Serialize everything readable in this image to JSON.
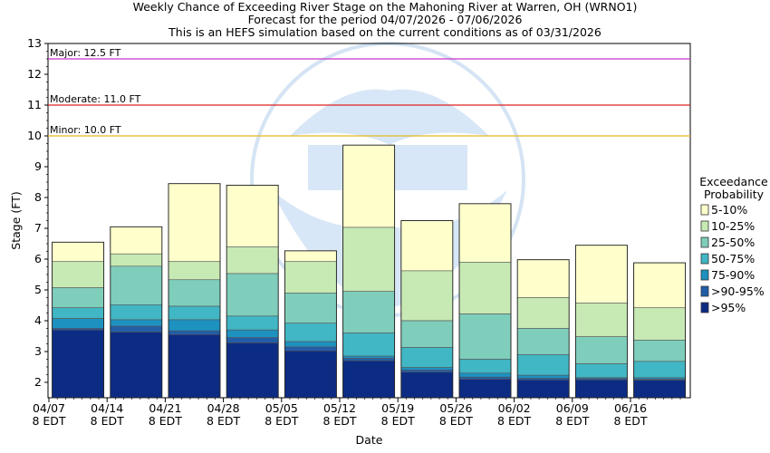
{
  "chart_data": {
    "type": "bar",
    "title_lines": [
      "Weekly Chance of Exceeding River Stage on the Mahoning River at Warren, OH (WRNO1)",
      "Forecast for the period 04/07/2026 - 07/06/2026",
      "This is an HEFS simulation based on the current conditions as of 03/31/2026"
    ],
    "xlabel": "Date",
    "ylabel": "Stage (FT)",
    "ylim": [
      1.5,
      13
    ],
    "yticks": [
      "2",
      "3",
      "4",
      "5",
      "6",
      "7",
      "8",
      "9",
      "10",
      "11",
      "12",
      "13"
    ],
    "x_tick_labels": [
      {
        "date": "04/07",
        "time": "8 EDT"
      },
      {
        "date": "04/14",
        "time": "8 EDT"
      },
      {
        "date": "04/21",
        "time": "8 EDT"
      },
      {
        "date": "04/28",
        "time": "8 EDT"
      },
      {
        "date": "05/05",
        "time": "8 EDT"
      },
      {
        "date": "05/12",
        "time": "8 EDT"
      },
      {
        "date": "05/19",
        "time": "8 EDT"
      },
      {
        "date": "05/26",
        "time": "8 EDT"
      },
      {
        "date": "06/02",
        "time": "8 EDT"
      },
      {
        "date": "06/09",
        "time": "8 EDT"
      },
      {
        "date": "06/16",
        "time": "8 EDT"
      }
    ],
    "thresholds": [
      {
        "label": "Major: 12.5 FT",
        "value": 12.5,
        "color": "#cc33cc"
      },
      {
        "label": "Moderate: 11.0 FT",
        "value": 11.0,
        "color": "#dd2222"
      },
      {
        "label": "Minor: 10.0 FT",
        "value": 10.0,
        "color": "#e8b820"
      }
    ],
    "legend_title": [
      "Exceedance",
      "Probability"
    ],
    "legend_position": "right",
    "bands": [
      {
        "label": "5-10%",
        "color": "#ffffcc"
      },
      {
        "label": "10-25%",
        "color": "#c7e9b4"
      },
      {
        "label": "25-50%",
        "color": "#7fcdbb"
      },
      {
        "label": "50-75%",
        "color": "#41b6c4"
      },
      {
        "label": "75-90%",
        "color": "#1d91c0"
      },
      {
        "label": ">90-95%",
        "color": "#225ea8"
      },
      {
        "label": ">95%",
        "color": "#0c2c84"
      }
    ],
    "weeks": [
      {
        "week": "04/07 - 04/14",
        "stages": [
          6.55,
          5.92,
          5.07,
          4.42,
          4.07,
          3.75,
          3.7
        ]
      },
      {
        "week": "04/14 - 04/21",
        "stages": [
          7.05,
          6.17,
          5.77,
          4.52,
          4.03,
          3.82,
          3.63
        ]
      },
      {
        "week": "04/21 - 04/28",
        "stages": [
          8.45,
          5.92,
          5.33,
          4.47,
          4.03,
          3.67,
          3.55
        ]
      },
      {
        "week": "04/28 - 05/05",
        "stages": [
          8.4,
          6.4,
          5.53,
          4.15,
          3.7,
          3.45,
          3.28
        ]
      },
      {
        "week": "05/05 - 05/12",
        "stages": [
          6.27,
          5.92,
          4.9,
          3.92,
          3.32,
          3.15,
          3.02
        ]
      },
      {
        "week": "05/12 - 05/19",
        "stages": [
          9.7,
          7.03,
          4.95,
          3.6,
          2.85,
          2.78,
          2.7
        ]
      },
      {
        "week": "05/19 - 05/26",
        "stages": [
          7.25,
          5.62,
          4.0,
          3.13,
          2.48,
          2.4,
          2.33
        ]
      },
      {
        "week": "05/26 - 06/02",
        "stages": [
          7.8,
          5.9,
          4.22,
          2.75,
          2.3,
          2.17,
          2.1
        ]
      },
      {
        "week": "06/02 - 06/09",
        "stages": [
          5.98,
          4.75,
          3.75,
          2.9,
          2.23,
          2.13,
          2.08
        ]
      },
      {
        "week": "06/09 - 06/16",
        "stages": [
          6.45,
          4.57,
          3.48,
          2.6,
          2.15,
          2.12,
          2.08
        ]
      },
      {
        "week": "06/16 - 06/23",
        "stages": [
          5.88,
          4.42,
          3.37,
          2.68,
          2.15,
          2.1,
          2.07
        ]
      }
    ],
    "grid": false
  }
}
